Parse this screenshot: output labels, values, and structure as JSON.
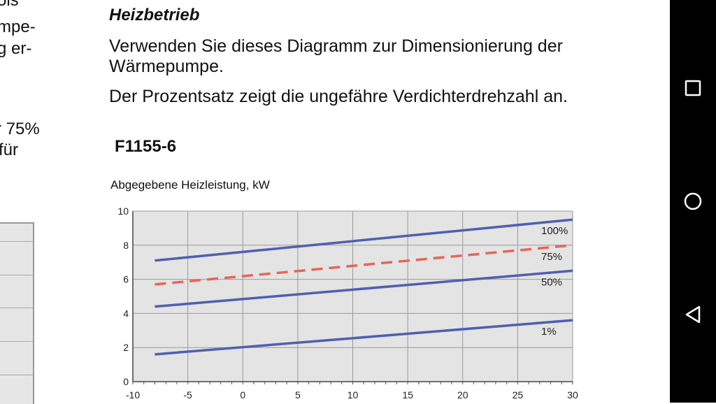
{
  "left_fragment": {
    "lines": [
      "ois",
      "mpe-",
      "g er-",
      "",
      "",
      "r 75%",
      "für"
    ]
  },
  "section": {
    "heading": "Heizbetrieb",
    "para1": "Verwenden Sie dieses Diagramm zur Dimensionierung der Wärmepumpe.",
    "para2": "Der Prozentsatz zeigt die ungefähre Verdichterdrehzahl an.",
    "model": "F1155-6"
  },
  "chart_data": {
    "type": "line",
    "title": "",
    "ylabel": "Abgegebene Heizleistung, kW",
    "xlabel": "",
    "xlim": [
      -10,
      30
    ],
    "ylim": [
      0,
      10
    ],
    "x_ticks": [
      -10,
      -5,
      0,
      5,
      10,
      15,
      20,
      25,
      30
    ],
    "y_ticks": [
      0,
      2,
      4,
      6,
      8,
      10
    ],
    "grid": true,
    "series": [
      {
        "name": "100%",
        "x": [
          -8,
          30
        ],
        "y": [
          7.1,
          9.5
        ],
        "color": "#5060b0",
        "dashed": false
      },
      {
        "name": "75%",
        "x": [
          -8,
          30
        ],
        "y": [
          5.7,
          8.0
        ],
        "color": "#e8645a",
        "dashed": true
      },
      {
        "name": "50%",
        "x": [
          -8,
          30
        ],
        "y": [
          4.4,
          6.5
        ],
        "color": "#5060b0",
        "dashed": false
      },
      {
        "name": "1%",
        "x": [
          -8,
          30
        ],
        "y": [
          1.6,
          3.6
        ],
        "color": "#5060b0",
        "dashed": false
      }
    ]
  },
  "nav": {
    "buttons": [
      "recents-icon",
      "home-icon",
      "back-icon"
    ]
  }
}
